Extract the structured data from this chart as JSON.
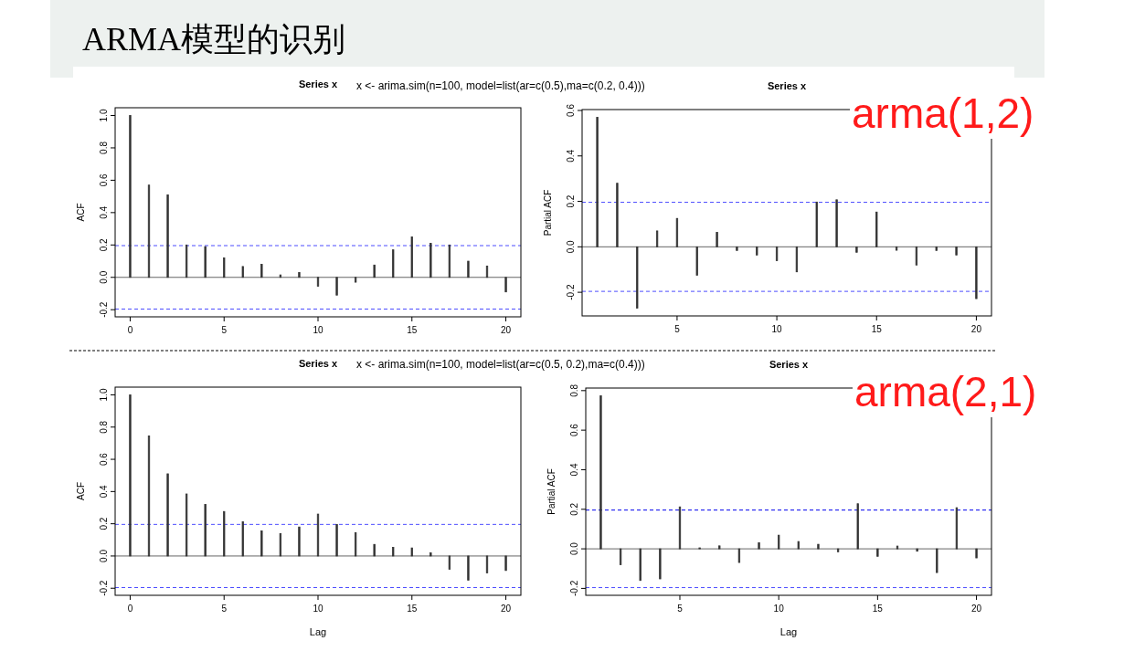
{
  "chart_data": [
    {
      "type": "bar",
      "title": "Series  x",
      "ylabel": "ACF",
      "annotations": [
        "ARMA模型的识别",
        "x <- arima.sim(n=100, model=list(ar=c(0.5),ma=c(0.2, 0.4)))"
      ],
      "x": [
        0,
        1,
        2,
        3,
        4,
        5,
        6,
        7,
        8,
        9,
        10,
        11,
        12,
        13,
        14,
        15,
        16,
        17,
        18,
        19,
        20
      ],
      "values": [
        1.0,
        0.57,
        0.51,
        0.2,
        0.19,
        0.12,
        0.067,
        0.08,
        0.015,
        0.03,
        -0.055,
        -0.11,
        -0.03,
        0.076,
        0.17,
        0.25,
        0.21,
        0.2,
        0.1,
        0.07,
        -0.09
      ],
      "color": "#333333",
      "xlim": [
        -0.8,
        20.8
      ],
      "ylim": [
        -0.244,
        1.048
      ],
      "xticks": [
        0,
        5,
        10,
        15,
        20
      ],
      "yticks": [
        {
          "value": -0.2,
          "label": "-0.2"
        },
        {
          "value": 0,
          "label": "0.0"
        },
        0.2,
        0.4,
        0.6,
        0.8,
        {
          "value": 1,
          "label": "1.0"
        }
      ],
      "ref_lines": [
        {
          "axis": "y",
          "value": 0,
          "color": "#666666",
          "line_style": "solid"
        },
        {
          "axis": "y",
          "value": 0.196,
          "color": "#4d4dff",
          "line_style": "dashed"
        },
        {
          "axis": "y",
          "value": -0.196,
          "color": "#4d4dff",
          "line_style": "dashed"
        }
      ]
    },
    {
      "type": "bar",
      "title": "Series  x",
      "ylabel": "Partial ACF",
      "annotations": [
        "arma(1,2)"
      ],
      "x": [
        1,
        2,
        3,
        4,
        5,
        6,
        7,
        8,
        9,
        10,
        11,
        12,
        13,
        14,
        15,
        16,
        17,
        18,
        19,
        20
      ],
      "values": [
        0.57,
        0.28,
        -0.27,
        0.07,
        0.125,
        -0.125,
        0.064,
        -0.016,
        -0.036,
        -0.061,
        -0.11,
        0.197,
        0.207,
        -0.024,
        0.153,
        -0.015,
        -0.08,
        -0.016,
        -0.036,
        -0.228
      ],
      "color": "#333333",
      "xlim": [
        0.24,
        20.76
      ],
      "ylim": [
        -0.304,
        0.604
      ],
      "xticks": [
        5,
        10,
        15,
        20
      ],
      "yticks": [
        {
          "value": -0.2,
          "label": "-0.2"
        },
        {
          "value": 0,
          "label": "0.0"
        },
        0.2,
        0.4,
        0.6
      ],
      "ref_lines": [
        {
          "axis": "y",
          "value": 0,
          "color": "#666666",
          "line_style": "solid"
        },
        {
          "axis": "y",
          "value": 0.196,
          "color": "#4d4dff",
          "line_style": "dashed"
        },
        {
          "axis": "y",
          "value": -0.196,
          "color": "#4d4dff",
          "line_style": "dashed"
        }
      ]
    },
    {
      "type": "bar",
      "title": "Series  x",
      "xlabel": "Lag",
      "ylabel": "ACF",
      "annotations": [
        "x <- arima.sim(n=100, model=list(ar=c(0.5, 0.2),ma=c(0.4)))"
      ],
      "x": [
        0,
        1,
        2,
        3,
        4,
        5,
        6,
        7,
        8,
        9,
        10,
        11,
        12,
        13,
        14,
        15,
        16,
        17,
        18,
        19,
        20
      ],
      "values": [
        1.0,
        0.745,
        0.51,
        0.385,
        0.32,
        0.276,
        0.213,
        0.156,
        0.139,
        0.18,
        0.26,
        0.196,
        0.145,
        0.072,
        0.053,
        0.05,
        0.019,
        -0.082,
        -0.15,
        -0.105,
        -0.09
      ],
      "color": "#333333",
      "xlim": [
        -0.8,
        20.8
      ],
      "ylim": [
        -0.244,
        1.048
      ],
      "xticks": [
        0,
        5,
        10,
        15,
        20
      ],
      "yticks": [
        {
          "value": -0.2,
          "label": "-0.2"
        },
        {
          "value": 0,
          "label": "0.0"
        },
        0.2,
        0.4,
        0.6,
        0.8,
        {
          "value": 1,
          "label": "1.0"
        }
      ],
      "ref_lines": [
        {
          "axis": "y",
          "value": 0,
          "color": "#666666",
          "line_style": "solid"
        },
        {
          "axis": "y",
          "value": 0.196,
          "color": "#4d4dff",
          "line_style": "dashed"
        },
        {
          "axis": "y",
          "value": -0.196,
          "color": "#4d4dff",
          "line_style": "dashed"
        }
      ]
    },
    {
      "type": "bar",
      "title": "Series  x",
      "xlabel": "Lag",
      "ylabel": "Partial ACF",
      "annotations": [
        "arma(2,1)"
      ],
      "x": [
        1,
        2,
        3,
        4,
        5,
        6,
        7,
        8,
        9,
        10,
        11,
        12,
        13,
        14,
        15,
        16,
        17,
        18,
        19,
        20
      ],
      "values": [
        0.774,
        -0.08,
        -0.16,
        -0.152,
        0.212,
        0.005,
        0.015,
        -0.069,
        0.031,
        0.069,
        0.037,
        0.023,
        -0.015,
        0.228,
        -0.038,
        0.014,
        -0.012,
        -0.12,
        0.208,
        -0.046
      ],
      "color": "#333333",
      "xlim": [
        0.24,
        20.76
      ],
      "ylim": [
        -0.235,
        0.813
      ],
      "xticks": [
        5,
        10,
        15,
        20
      ],
      "yticks": [
        {
          "value": -0.2,
          "label": "-0.2"
        },
        {
          "value": 0,
          "label": "0.0"
        },
        0.2,
        0.4,
        0.6,
        0.8
      ],
      "ref_lines": [
        {
          "axis": "y",
          "value": 0,
          "color": "#666666",
          "line_style": "solid"
        },
        {
          "axis": "y",
          "value": 0.196,
          "color": "#0000ee",
          "line_style": "dashed"
        },
        {
          "axis": "y",
          "value": -0.196,
          "color": "#4d4dff",
          "line_style": "dashed"
        }
      ]
    }
  ]
}
